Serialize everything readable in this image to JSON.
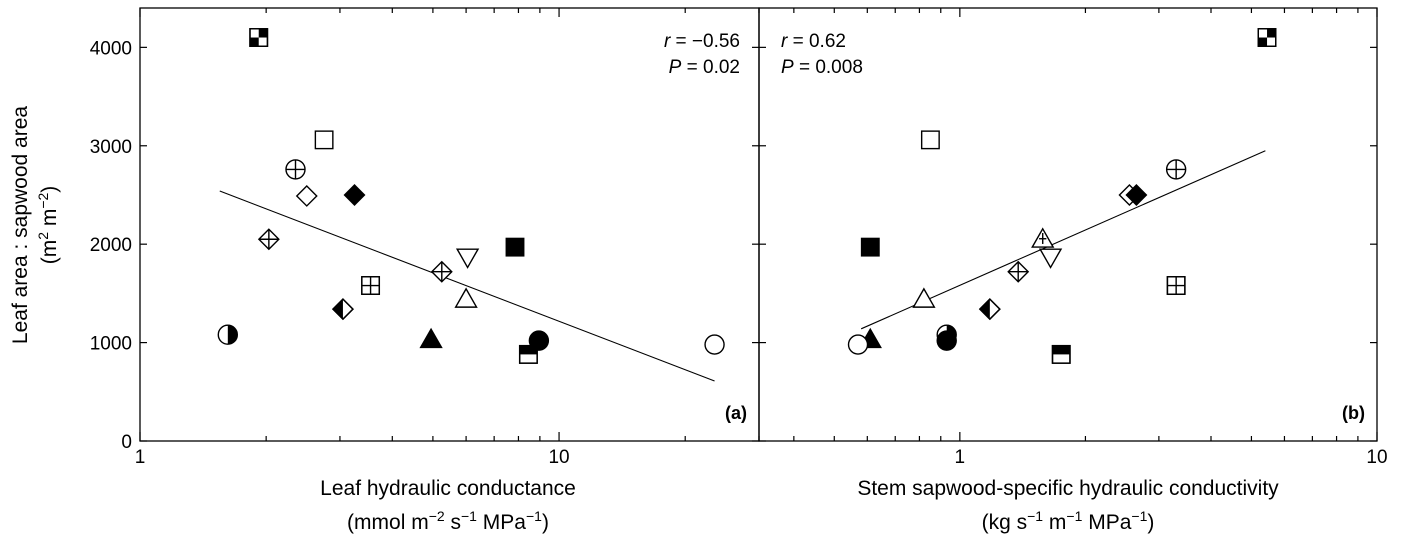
{
  "figure": {
    "ylabel_line1": "Leaf area : sapwood area",
    "ylabel_unit_base": "(m",
    "ylabel_unit_sup1": "2",
    "ylabel_unit_mid": " m",
    "ylabel_unit_sup2": "−2",
    "ylabel_unit_end": ")"
  },
  "chart_data": [
    {
      "type": "scatter",
      "panel": "(a)",
      "x_scale": "log",
      "xlim": [
        1,
        30
      ],
      "ylim": [
        0,
        4400
      ],
      "x_ticks": [
        1,
        10
      ],
      "x_tick_labels": [
        "1",
        "10"
      ],
      "y_ticks": [
        0,
        1000,
        2000,
        3000,
        4000
      ],
      "y_tick_labels": [
        "0",
        "1000",
        "2000",
        "3000",
        "4000"
      ],
      "xlabel_line1": "Leaf hydraulic conductance",
      "xlabel_line2": {
        "a": "(mmol m",
        "s1": "−2",
        "b": " s",
        "s2": "−1",
        "c": " MPa",
        "s3": "−1",
        "d": ")"
      },
      "stats": {
        "r_label": "r",
        "r_value": " = −0.56",
        "p_label": "P",
        "p_value": " = 0.02",
        "position": "top-right"
      },
      "fit_line": {
        "x": [
          1.55,
          23.5
        ],
        "y": [
          2540,
          610
        ]
      },
      "points": [
        {
          "x": 1.92,
          "y": 4100,
          "marker": "square-checker"
        },
        {
          "x": 2.75,
          "y": 3060,
          "marker": "square-open"
        },
        {
          "x": 2.35,
          "y": 2760,
          "marker": "circle-cross"
        },
        {
          "x": 2.5,
          "y": 2490,
          "marker": "diamond-open"
        },
        {
          "x": 3.25,
          "y": 2500,
          "marker": "diamond-filled"
        },
        {
          "x": 2.03,
          "y": 2050,
          "marker": "diamond-cross"
        },
        {
          "x": 5.25,
          "y": 1720,
          "marker": "diamond-cross"
        },
        {
          "x": 6.05,
          "y": 1870,
          "marker": "triangle-down-open"
        },
        {
          "x": 7.85,
          "y": 1970,
          "marker": "square-filled"
        },
        {
          "x": 3.55,
          "y": 1580,
          "marker": "square-grid"
        },
        {
          "x": 6.0,
          "y": 1440,
          "marker": "triangle-up-open"
        },
        {
          "x": 3.05,
          "y": 1340,
          "marker": "diamond-half"
        },
        {
          "x": 1.62,
          "y": 1080,
          "marker": "circle-half"
        },
        {
          "x": 4.95,
          "y": 1030,
          "marker": "triangle-up-filled"
        },
        {
          "x": 8.95,
          "y": 1020,
          "marker": "circle-filled"
        },
        {
          "x": 8.45,
          "y": 880,
          "marker": "square-half"
        },
        {
          "x": 23.5,
          "y": 980,
          "marker": "circle-open"
        }
      ]
    },
    {
      "type": "scatter",
      "panel": "(b)",
      "x_scale": "log",
      "xlim": [
        0.33,
        10
      ],
      "ylim": [
        0,
        4400
      ],
      "x_ticks": [
        1,
        10
      ],
      "x_tick_labels": [
        "1",
        "10"
      ],
      "y_ticks": [
        0,
        1000,
        2000,
        3000,
        4000
      ],
      "xlabel_line1": "Stem sapwood-specific hydraulic conductivity",
      "xlabel_line2": {
        "a": "(kg s",
        "s1": "−1",
        "b": " m",
        "s2": "−1",
        "c": " MPa",
        "s3": "−1",
        "d": ")"
      },
      "stats": {
        "r_label": "r",
        "r_value": " = 0.62",
        "p_label": "P",
        "p_value": " = 0.008",
        "position": "top-left"
      },
      "fit_line": {
        "x": [
          0.58,
          5.4
        ],
        "y": [
          1140,
          2950
        ]
      },
      "points": [
        {
          "x": 5.45,
          "y": 4100,
          "marker": "square-checker"
        },
        {
          "x": 0.85,
          "y": 3060,
          "marker": "square-open"
        },
        {
          "x": 3.3,
          "y": 2760,
          "marker": "circle-cross"
        },
        {
          "x": 2.55,
          "y": 2500,
          "marker": "diamond-open"
        },
        {
          "x": 2.65,
          "y": 2500,
          "marker": "diamond-filled"
        },
        {
          "x": 1.58,
          "y": 2050,
          "marker": "triangle-up-plus"
        },
        {
          "x": 1.38,
          "y": 1720,
          "marker": "diamond-cross"
        },
        {
          "x": 1.65,
          "y": 1870,
          "marker": "triangle-down-open"
        },
        {
          "x": 0.61,
          "y": 1970,
          "marker": "square-filled"
        },
        {
          "x": 3.3,
          "y": 1580,
          "marker": "square-grid"
        },
        {
          "x": 0.82,
          "y": 1440,
          "marker": "triangle-up-open"
        },
        {
          "x": 1.18,
          "y": 1340,
          "marker": "diamond-half"
        },
        {
          "x": 0.93,
          "y": 1080,
          "marker": "circle-half"
        },
        {
          "x": 0.93,
          "y": 1020,
          "marker": "circle-filled"
        },
        {
          "x": 0.61,
          "y": 1030,
          "marker": "triangle-up-filled"
        },
        {
          "x": 1.75,
          "y": 880,
          "marker": "square-half"
        },
        {
          "x": 0.57,
          "y": 980,
          "marker": "circle-open"
        }
      ]
    }
  ]
}
